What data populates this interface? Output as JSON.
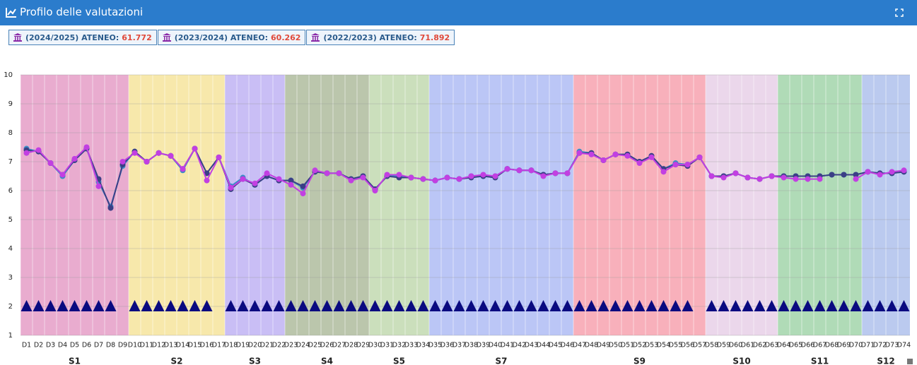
{
  "header": {
    "title": "Profilo delle valutazioni"
  },
  "chart_data": {
    "type": "line",
    "categories": [
      "D1",
      "D2",
      "D3",
      "D4",
      "D5",
      "D6",
      "D7",
      "D8",
      "D9",
      "D10",
      "D11",
      "D12",
      "D13",
      "D14",
      "D15",
      "D16",
      "D17",
      "D18",
      "D19",
      "D20",
      "D21",
      "D22",
      "D23",
      "D24",
      "D25",
      "D26",
      "D27",
      "D28",
      "D29",
      "D30",
      "D31",
      "D32",
      "D33",
      "D34",
      "D35",
      "D36",
      "D37",
      "D38",
      "D39",
      "D40",
      "D41",
      "D42",
      "D43",
      "D44",
      "D45",
      "D46",
      "D47",
      "D48",
      "D49",
      "D50",
      "D51",
      "D52",
      "D53",
      "D54",
      "D55",
      "D56",
      "D57",
      "D58",
      "D59",
      "D60",
      "D61",
      "D62",
      "D63",
      "D64",
      "D65",
      "D66",
      "D67",
      "D68",
      "D69",
      "D70",
      "D71",
      "D72",
      "D73",
      "D74"
    ],
    "sections": [
      {
        "label": "S1",
        "from": "D1",
        "to": "D9",
        "fill": "#e8a8cc",
        "color": "#b0256b"
      },
      {
        "label": "S2",
        "from": "D10",
        "to": "D17",
        "fill": "#f7e7a6",
        "color": "#e6bf22"
      },
      {
        "label": "S3",
        "from": "D18",
        "to": "D22",
        "fill": "#c6bbf4",
        "color": "#6a3cc0"
      },
      {
        "label": "S4",
        "from": "D23",
        "to": "D29",
        "fill": "#b7c3a8",
        "color": "#3a5a10"
      },
      {
        "label": "S5",
        "from": "D30",
        "to": "D34",
        "fill": "#c8ddb8",
        "color": "#6aaa40"
      },
      {
        "label": "S7",
        "from": "D35",
        "to": "D46",
        "fill": "#b7c3f5",
        "color": "#2050c0"
      },
      {
        "label": "S9",
        "from": "D47",
        "to": "D57",
        "fill": "#f8acb7",
        "color": "#e02030"
      },
      {
        "label": "S10",
        "from": "D58",
        "to": "D63",
        "fill": "#ead5ea",
        "color": "#d090c0"
      },
      {
        "label": "S11",
        "from": "D64",
        "to": "D70",
        "fill": "#acd9b3",
        "color": "#30a030"
      },
      {
        "label": "S12",
        "from": "D71",
        "to": "D74",
        "fill": "#b7c7ee",
        "color": "#3060c0"
      }
    ],
    "series": [
      {
        "name": "(2024/2025) ATENEO:",
        "score": 61.772,
        "color": "#3a8fc8",
        "values": [
          7.45,
          7.35,
          6.95,
          6.5,
          7.05,
          7.45,
          6.3,
          5.45,
          6.85,
          7.35,
          7.0,
          7.3,
          7.2,
          6.7,
          7.45,
          6.6,
          7.15,
          6.15,
          6.45,
          6.2,
          6.5,
          6.35,
          6.35,
          6.1,
          6.65,
          6.6,
          6.6,
          6.4,
          6.5,
          6.05,
          6.5,
          6.5,
          6.45,
          6.4,
          6.35,
          6.45,
          6.4,
          6.5,
          6.5,
          6.5,
          6.75,
          6.7,
          6.7,
          6.55,
          6.6,
          6.6,
          7.35,
          7.3,
          7.05,
          7.25,
          7.25,
          7.0,
          7.2,
          6.75,
          6.95,
          6.9,
          7.15,
          6.5,
          6.5,
          6.6,
          6.45,
          6.4,
          6.5,
          6.5,
          6.5,
          6.5,
          6.5,
          6.55,
          6.55,
          6.55,
          6.65,
          6.6,
          6.6,
          6.65
        ]
      },
      {
        "name": "(2023/2024) ATENEO:",
        "score": 60.262,
        "color": "#3b3f86",
        "values": [
          7.4,
          7.35,
          6.95,
          6.55,
          7.05,
          7.45,
          6.4,
          5.4,
          6.9,
          7.35,
          7.0,
          7.3,
          7.2,
          6.75,
          7.45,
          6.6,
          7.15,
          6.05,
          6.4,
          6.2,
          6.5,
          6.35,
          6.35,
          6.15,
          6.65,
          6.6,
          6.6,
          6.4,
          6.5,
          6.05,
          6.5,
          6.45,
          6.45,
          6.4,
          6.35,
          6.45,
          6.4,
          6.45,
          6.5,
          6.45,
          6.75,
          6.7,
          6.7,
          6.55,
          6.6,
          6.6,
          7.3,
          7.3,
          7.05,
          7.25,
          7.25,
          7.0,
          7.2,
          6.75,
          6.9,
          6.85,
          7.15,
          6.5,
          6.5,
          6.6,
          6.45,
          6.4,
          6.5,
          6.5,
          6.5,
          6.5,
          6.5,
          6.55,
          6.55,
          6.55,
          6.65,
          6.6,
          6.6,
          6.65
        ]
      },
      {
        "name": "(2022/2023) ATENEO:",
        "score": 71.892,
        "color": "#c23fe2",
        "values": [
          7.3,
          7.4,
          6.95,
          6.55,
          7.1,
          7.5,
          6.15,
          null,
          7.0,
          7.3,
          7.0,
          7.3,
          7.2,
          6.75,
          7.45,
          6.35,
          7.15,
          6.1,
          6.4,
          6.25,
          6.6,
          6.4,
          6.2,
          5.9,
          6.7,
          6.6,
          6.6,
          6.35,
          6.45,
          6.0,
          6.55,
          6.55,
          6.45,
          6.4,
          6.35,
          6.45,
          6.4,
          6.5,
          6.55,
          6.5,
          6.75,
          6.7,
          6.7,
          6.5,
          6.6,
          6.6,
          7.3,
          7.25,
          7.05,
          7.25,
          7.2,
          6.95,
          7.15,
          6.65,
          6.9,
          6.9,
          7.15,
          6.5,
          6.45,
          6.6,
          6.45,
          6.4,
          6.5,
          6.45,
          6.4,
          6.4,
          6.4,
          null,
          null,
          6.4,
          6.65,
          6.55,
          6.65,
          6.7
        ]
      },
      {
        "marker": "triangle",
        "color": "#0a0a80",
        "values": [
          2,
          2,
          2,
          2,
          2,
          2,
          2,
          2,
          null,
          2,
          2,
          2,
          2,
          2,
          2,
          2,
          null,
          2,
          2,
          2,
          2,
          2,
          2,
          2,
          2,
          2,
          2,
          2,
          2,
          2,
          2,
          2,
          2,
          2,
          2,
          2,
          2,
          2,
          2,
          2,
          2,
          2,
          2,
          2,
          2,
          2,
          2,
          2,
          2,
          2,
          2,
          2,
          2,
          2,
          2,
          2,
          null,
          2,
          2,
          2,
          2,
          2,
          2,
          2,
          2,
          2,
          2,
          2,
          2,
          2,
          2,
          2,
          2,
          2
        ]
      }
    ],
    "ylim": [
      1,
      10
    ],
    "yticks": [
      1,
      2,
      3,
      4,
      5,
      6,
      7,
      8,
      9,
      10
    ],
    "grid": true
  }
}
